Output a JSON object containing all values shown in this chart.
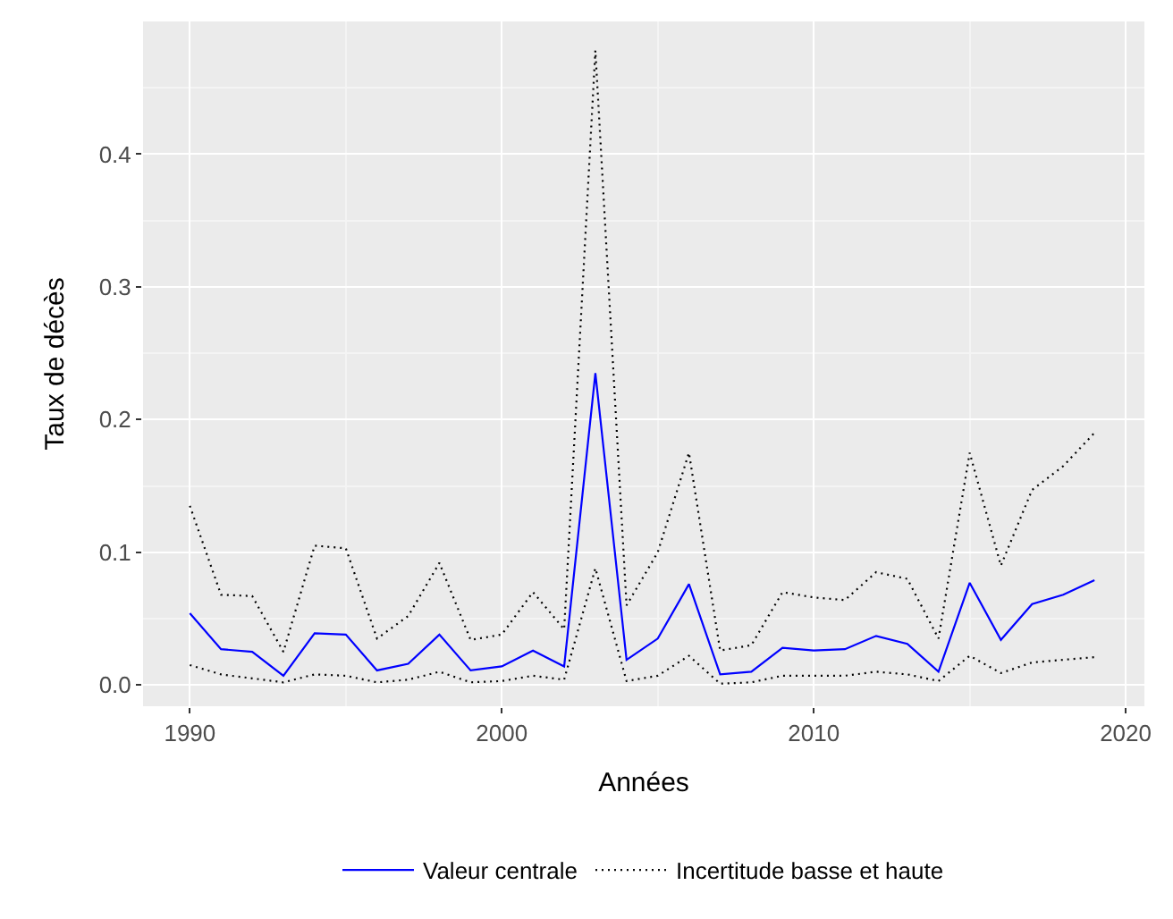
{
  "chart_data": {
    "type": "line",
    "xlabel": "Années",
    "ylabel": "Taux de décès",
    "x": [
      1990,
      1991,
      1992,
      1993,
      1994,
      1995,
      1996,
      1997,
      1998,
      1999,
      2000,
      2001,
      2002,
      2003,
      2004,
      2005,
      2006,
      2007,
      2008,
      2009,
      2010,
      2011,
      2012,
      2013,
      2014,
      2015,
      2016,
      2017,
      2018,
      2019
    ],
    "series": [
      {
        "name": "Valeur centrale",
        "color": "#0000ff",
        "line_style": "solid",
        "values": [
          0.054,
          0.027,
          0.025,
          0.007,
          0.039,
          0.038,
          0.011,
          0.016,
          0.038,
          0.011,
          0.014,
          0.026,
          0.014,
          0.235,
          0.019,
          0.035,
          0.076,
          0.008,
          0.01,
          0.028,
          0.026,
          0.027,
          0.037,
          0.031,
          0.01,
          0.077,
          0.034,
          0.061,
          0.068,
          0.079
        ]
      },
      {
        "name": "Incertitude basse et haute",
        "color": "#000000",
        "line_style": "dotted",
        "values": [
          0.135,
          0.068,
          0.067,
          0.025,
          0.105,
          0.103,
          0.035,
          0.052,
          0.092,
          0.034,
          0.038,
          0.07,
          0.042,
          0.478,
          0.06,
          0.1,
          0.175,
          0.026,
          0.03,
          0.07,
          0.066,
          0.064,
          0.085,
          0.08,
          0.035,
          0.175,
          0.09,
          0.147,
          0.165,
          0.19
        ]
      },
      {
        "color": "#000000",
        "line_style": "dotted",
        "values": [
          0.015,
          0.008,
          0.005,
          0.002,
          0.008,
          0.007,
          0.002,
          0.004,
          0.01,
          0.002,
          0.003,
          0.007,
          0.004,
          0.088,
          0.003,
          0.007,
          0.022,
          0.001,
          0.002,
          0.007,
          0.007,
          0.007,
          0.01,
          0.008,
          0.003,
          0.022,
          0.009,
          0.017,
          0.019,
          0.021
        ]
      }
    ],
    "xlim": [
      1988.5,
      2020.6
    ],
    "xticks": [
      1990,
      2000,
      2010,
      2020
    ],
    "ylim": [
      -0.016,
      0.5
    ],
    "yticks": [
      {
        "value": 0,
        "label": "0.0"
      },
      0.1,
      0.2,
      0.3,
      0.4
    ],
    "grid": true,
    "legend": "bottom"
  }
}
